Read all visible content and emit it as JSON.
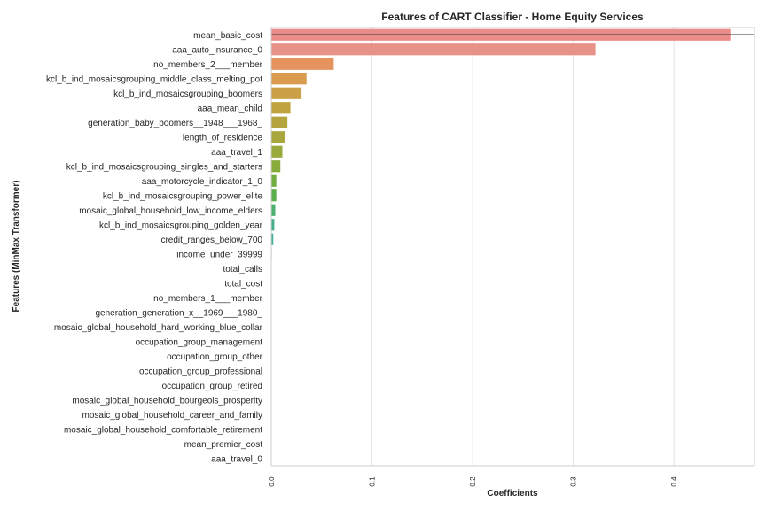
{
  "chart_data": {
    "type": "bar",
    "orientation": "horizontal",
    "title": "Features of CART Classifier - Home Equity Services",
    "xlabel": "Coefficients",
    "ylabel": "Features (MinMax Transformer)",
    "xlim": [
      0,
      0.48
    ],
    "xticks": [
      "0.0",
      "0.1",
      "0.2",
      "0.3",
      "0.4"
    ],
    "xtick_values": [
      0,
      0.1,
      0.2,
      0.3,
      0.4
    ],
    "grid": "vertical",
    "reference_line": "horizontal line across the top bar",
    "categories": [
      "mean_basic_cost",
      "aaa_auto_insurance_0",
      "no_members_2___member",
      "kcl_b_ind_mosaicsgrouping_middle_class_melting_pot",
      "kcl_b_ind_mosaicsgrouping_boomers",
      "aaa_mean_child",
      "generation_baby_boomers__1948___1968_",
      "length_of_residence",
      "aaa_travel_1",
      "kcl_b_ind_mosaicsgrouping_singles_and_starters",
      "aaa_motorcycle_indicator_1_0",
      "kcl_b_ind_mosaicsgrouping_power_elite",
      "mosaic_global_household_low_income_elders",
      "kcl_b_ind_mosaicsgrouping_golden_year",
      "credit_ranges_below_700",
      "income_under_39999",
      "total_calls",
      "total_cost",
      "no_members_1___member",
      "generation_generation_x__1969___1980_",
      "mosaic_global_household_hard_working_blue_collar",
      "occupation_group_management",
      "occupation_group_other",
      "occupation_group_professional",
      "occupation_group_retired",
      "mosaic_global_household_bourgeois_prosperity",
      "mosaic_global_household_career_and_family",
      "mosaic_global_household_comfortable_retirement",
      "mean_premier_cost",
      "aaa_travel_0"
    ],
    "values": [
      0.456,
      0.322,
      0.062,
      0.035,
      0.03,
      0.019,
      0.016,
      0.014,
      0.011,
      0.009,
      0.005,
      0.005,
      0.004,
      0.003,
      0.002,
      0.0005,
      0,
      0,
      0,
      0,
      0,
      0,
      0,
      0,
      0,
      0,
      0,
      0,
      0,
      0
    ],
    "colors": [
      "#ea8d8a",
      "#e89188",
      "#e4935f",
      "#d99c4f",
      "#cca046",
      "#c0a23f",
      "#b4a43e",
      "#a8a63c",
      "#9aa93b",
      "#89ab3a",
      "#73ad40",
      "#5cb04c",
      "#4cb070",
      "#47b08a",
      "#45ae98",
      "#44ac9f",
      "#45aaa6",
      "#47a8ad",
      "#49a6b6",
      "#4da2c0",
      "#589ecc",
      "#6e99d7",
      "#8b92e2",
      "#a38ae9",
      "#b885ee",
      "#cc80ee",
      "#dc7be6",
      "#e778d5",
      "#ec7dc2",
      "#ee82b3"
    ]
  }
}
